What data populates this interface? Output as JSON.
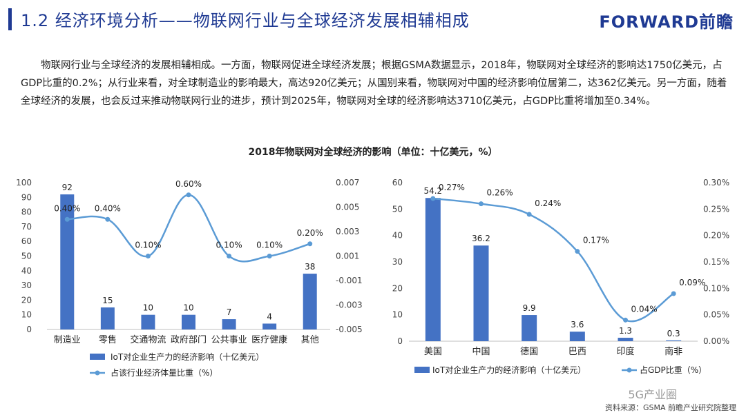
{
  "header": {
    "title": "1.2 经济环境分析——物联网行业与全球经济发展相辅相成",
    "logo": "FORWARD前瞻"
  },
  "paragraph": "物联网行业与全球经济的发展相辅相成。一方面，物联网促进全球经济发展；根据GSMA数据显示，2018年，物联网对全球经济的影响达1750亿美元，占GDP比重的0.2%；从行业来看，对全球制造业的影响最大，高达920亿美元；从国别来看，物联网对中国的经济影响位居第二，达362亿美元。另一方面，随着全球经济的发展，也会反过来推动物联网行业的进步，预计到2025年，物联网对全球的经济影响达3710亿美元，占GDP比重将增加至0.34%。",
  "chart_title": "2018年物联网对全球经济的影响（单位：十亿美元，%）",
  "source": "资料来源：GSMA 前瞻产业研究院整理",
  "watermark": "5G产业圈",
  "colors": {
    "bar": "#4472c4",
    "line": "#5b9bd5",
    "title": "#1f3a93"
  },
  "chart_data": [
    {
      "type": "bar",
      "categories": [
        "制造业",
        "零售",
        "交通物流",
        "政府部门",
        "公共事业",
        "医疗健康",
        "其他"
      ],
      "series": [
        {
          "name": "IoT对企业生产力的经济影响（十亿美元）",
          "type": "bar",
          "axis": "left",
          "values": [
            92,
            15,
            10,
            10,
            7,
            4,
            38
          ]
        },
        {
          "name": "占该行业经济体量比重（%）",
          "type": "line",
          "axis": "right",
          "values": [
            0.004,
            0.004,
            0.001,
            0.006,
            0.001,
            0.001,
            0.002
          ],
          "labels": [
            "0.40%",
            "0.40%",
            "0.10%",
            "0.60%",
            "0.10%",
            "0.10%",
            "0.20%"
          ]
        }
      ],
      "bar_labels": [
        "92",
        "15",
        "10",
        "10",
        "7",
        "4",
        "38"
      ],
      "ylim_left": [
        0,
        100
      ],
      "left_ticks": [
        "0",
        "10",
        "20",
        "30",
        "40",
        "50",
        "60",
        "70",
        "80",
        "90",
        "100"
      ],
      "ylim_right": [
        -0.005,
        0.007
      ],
      "right_ticks": [
        "-0.005",
        "-0.003",
        "-0.001",
        "0.001",
        "0.003",
        "0.005",
        "0.007"
      ],
      "legend": "bottom"
    },
    {
      "type": "bar",
      "categories": [
        "美国",
        "中国",
        "德国",
        "巴西",
        "印度",
        "南非"
      ],
      "series": [
        {
          "name": "IoT对企业生产力的经济影响（十亿美元）",
          "type": "bar",
          "axis": "left",
          "values": [
            54.2,
            36.2,
            9.9,
            3.6,
            1.3,
            0.3
          ]
        },
        {
          "name": "占GDP比重（%）",
          "type": "line",
          "axis": "right",
          "values": [
            0.27,
            0.26,
            0.24,
            0.17,
            0.04,
            0.09
          ],
          "labels": [
            "0.27%",
            "0.26%",
            "0.24%",
            "0.17%",
            "0.04%",
            "0.09%"
          ]
        }
      ],
      "bar_labels": [
        "54.2",
        "36.2",
        "9.9",
        "3.6",
        "1.3",
        "0.3"
      ],
      "ylim_left": [
        0,
        60
      ],
      "left_ticks": [
        "0",
        "10",
        "20",
        "30",
        "40",
        "50",
        "60"
      ],
      "ylim_right": [
        0,
        0.3
      ],
      "right_ticks": [
        "0.00%",
        "0.05%",
        "0.10%",
        "0.15%",
        "0.20%",
        "0.25%",
        "0.30%"
      ],
      "legend": "bottom"
    }
  ]
}
